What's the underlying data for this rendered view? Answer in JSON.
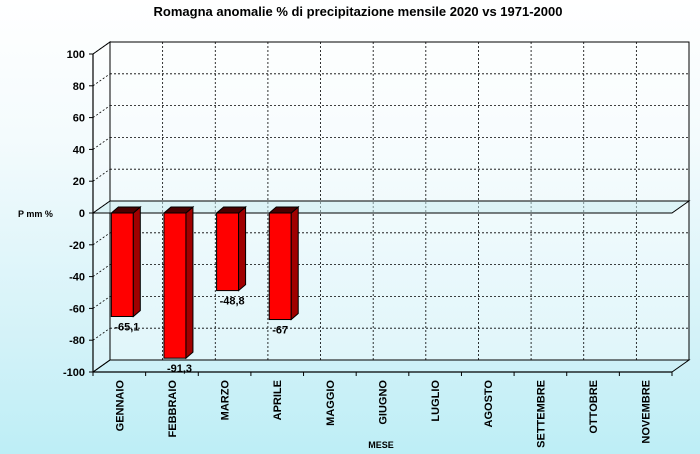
{
  "chart_data": {
    "type": "bar",
    "title": "Romagna anomalie % di precipitazione mensile 2020 vs 1971-2000",
    "xlabel": "MESE",
    "ylabel": "P mm %",
    "categories": [
      "GENNAIO",
      "FEBBRAIO",
      "MARZO",
      "APRILE",
      "MAGGIO",
      "GIUGNO",
      "LUGLIO",
      "AGOSTO",
      "SETTEMBRE",
      "OTTOBRE",
      "NOVEMBRE"
    ],
    "values": [
      -65.1,
      -91.3,
      -48.8,
      -67,
      null,
      null,
      null,
      null,
      null,
      null,
      null
    ],
    "value_labels": [
      "-65,1",
      "-91,3",
      "-48,8",
      "-67",
      "",
      "",
      "",
      "",
      "",
      "",
      ""
    ],
    "ylim": [
      -100,
      100
    ],
    "yticks": [
      100,
      80,
      60,
      40,
      20,
      0,
      -20,
      -40,
      -60,
      -80,
      -100
    ],
    "grid": true,
    "bar_color": "#ff0000",
    "bar_side_color": "#a00000",
    "bar_top_color": "#4a0000"
  }
}
